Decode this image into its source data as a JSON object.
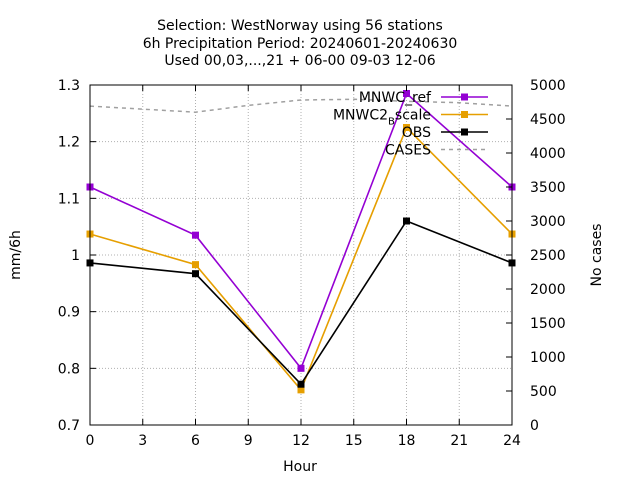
{
  "chart_data": {
    "type": "line",
    "title_lines": [
      "Selection: WestNorway using    56 stations",
      "6h Precipitation   Period: 20240601-20240630",
      "Used 00,03,...,21 + 06-00 09-03 12-06"
    ],
    "xlabel": "Hour",
    "ylabel": "mm/6h",
    "y2label": "No cases",
    "xlim": [
      0,
      24
    ],
    "ylim": [
      0.7,
      1.3
    ],
    "y2lim": [
      0,
      5000
    ],
    "xticks": [
      0,
      3,
      6,
      9,
      12,
      15,
      18,
      21,
      24
    ],
    "yticks": [
      "0.7",
      "0.8",
      "0.9",
      "1",
      "1.1",
      "1.2",
      "1.3"
    ],
    "y2ticks": [
      0,
      500,
      1000,
      1500,
      2000,
      2500,
      3000,
      3500,
      4000,
      4500,
      5000
    ],
    "grid": true,
    "legend_position": "top-right",
    "series": [
      {
        "name": "MNWC_ref",
        "legend_label": "MNWC_ref",
        "color": "#9400d3",
        "marker": "filled-square",
        "axis": "y",
        "x": [
          0,
          6,
          12,
          18,
          24
        ],
        "values": [
          1.12,
          1.035,
          0.8,
          1.285,
          1.12
        ]
      },
      {
        "name": "MNWC2_Bscale",
        "legend_label": "MNWC2",
        "legend_sub": "B",
        "legend_tail": "scale",
        "color": "#e69f00",
        "marker": "filled-square",
        "axis": "y",
        "x": [
          0,
          6,
          12,
          18,
          24
        ],
        "values": [
          1.037,
          0.983,
          0.762,
          1.225,
          1.037
        ]
      },
      {
        "name": "OBS",
        "legend_label": "OBS",
        "color": "#000000",
        "marker": "filled-square",
        "axis": "y",
        "x": [
          0,
          6,
          12,
          18,
          24
        ],
        "values": [
          0.986,
          0.967,
          0.772,
          1.06,
          0.986
        ]
      },
      {
        "name": "CASES",
        "legend_label": "CASES",
        "color": "#a0a0a0",
        "dashed": true,
        "axis": "y2",
        "x": [
          0,
          6,
          9,
          12,
          15,
          18,
          21,
          24
        ],
        "values": [
          4690,
          4600,
          4700,
          4780,
          4790,
          4760,
          4740,
          4690
        ]
      }
    ]
  }
}
